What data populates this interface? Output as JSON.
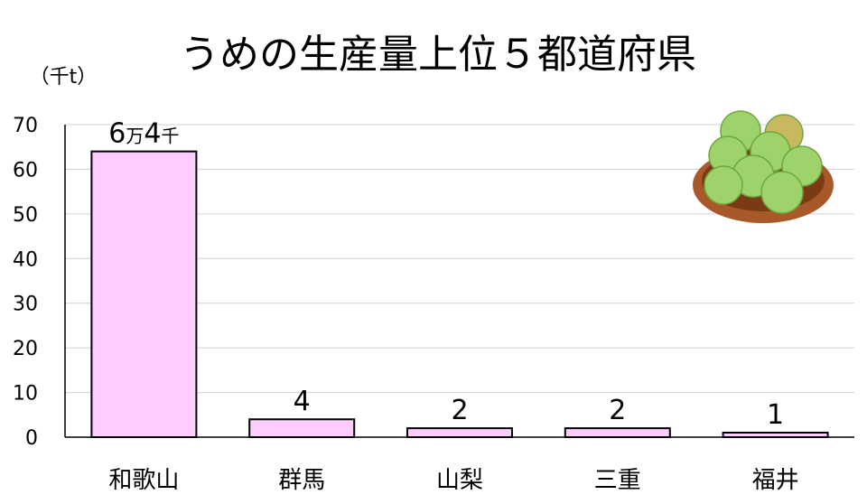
{
  "chart_data": {
    "type": "bar",
    "title": "うめの生産量上位５都道府県",
    "unit_label": "（千t）",
    "categories": [
      "和歌山",
      "群馬",
      "山梨",
      "三重",
      "福井"
    ],
    "values": [
      64,
      4,
      2,
      2,
      1
    ],
    "data_labels": [
      {
        "num1": "6",
        "unit1": "万",
        "num2": "4",
        "unit2": "千"
      },
      {
        "num1": "4"
      },
      {
        "num1": "2"
      },
      {
        "num1": "2"
      },
      {
        "num1": "1"
      }
    ],
    "yticks": [
      "0",
      "10",
      "20",
      "30",
      "40",
      "50",
      "60",
      "70"
    ],
    "ylim": [
      0,
      70
    ],
    "grid": true,
    "colors": {
      "bar_fill": "#ffccff",
      "bar_stroke": "#000000",
      "grid": "#d0d0d0"
    },
    "decoration_icon": "ume-basket-icon"
  }
}
